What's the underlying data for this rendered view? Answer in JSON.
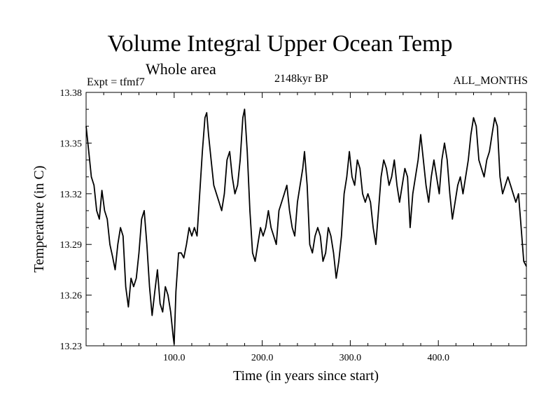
{
  "chart_data": {
    "type": "line",
    "title": "Volume Integral Upper Ocean Temp",
    "subtitle": "Whole area",
    "experiment_label": "Expt = tfmf7",
    "period_label": "2148kyr BP",
    "months_label": "ALL_MONTHS",
    "xlabel": "Time (in years since start)",
    "ylabel": "Temperature (in C)",
    "xlim": [
      0,
      500
    ],
    "ylim": [
      13.23,
      13.38
    ],
    "xticks": [
      100,
      200,
      300,
      400
    ],
    "xtick_labels": [
      "100.0",
      "200.0",
      "300.0",
      "400.0"
    ],
    "yticks": [
      13.23,
      13.26,
      13.29,
      13.32,
      13.35,
      13.38
    ],
    "ytick_labels": [
      "13.23",
      "13.26",
      "13.29",
      "13.32",
      "13.35",
      "13.38"
    ],
    "grid": false,
    "series": [
      {
        "name": "Temperature",
        "color": "#000000",
        "x": [
          0,
          3,
          6,
          9,
          12,
          15,
          18,
          21,
          24,
          27,
          30,
          33,
          36,
          39,
          42,
          45,
          48,
          51,
          54,
          57,
          60,
          63,
          66,
          69,
          72,
          75,
          78,
          81,
          84,
          87,
          90,
          93,
          96,
          99,
          100,
          102,
          105,
          108,
          111,
          114,
          117,
          120,
          123,
          126,
          129,
          132,
          135,
          137,
          139,
          142,
          145,
          148,
          151,
          154,
          157,
          160,
          163,
          166,
          169,
          172,
          175,
          178,
          180,
          183,
          186,
          189,
          192,
          195,
          198,
          201,
          204,
          207,
          210,
          213,
          216,
          219,
          222,
          225,
          228,
          231,
          234,
          237,
          240,
          243,
          246,
          248,
          251,
          254,
          257,
          260,
          263,
          266,
          269,
          272,
          275,
          278,
          281,
          284,
          287,
          290,
          293,
          296,
          299,
          302,
          305,
          308,
          311,
          314,
          317,
          320,
          323,
          326,
          329,
          332,
          335,
          338,
          341,
          344,
          347,
          350,
          353,
          356,
          359,
          362,
          365,
          368,
          371,
          374,
          377,
          380,
          383,
          386,
          389,
          392,
          395,
          398,
          401,
          404,
          407,
          410,
          413,
          416,
          419,
          422,
          425,
          428,
          431,
          434,
          437,
          440,
          443,
          446,
          449,
          452,
          455,
          458,
          461,
          464,
          467,
          470,
          473,
          476,
          479,
          482,
          485,
          488,
          491,
          494,
          497,
          500
        ],
        "values": [
          13.36,
          13.345,
          13.33,
          13.325,
          13.31,
          13.305,
          13.322,
          13.31,
          13.305,
          13.29,
          13.283,
          13.275,
          13.29,
          13.3,
          13.295,
          13.265,
          13.253,
          13.27,
          13.265,
          13.27,
          13.285,
          13.305,
          13.31,
          13.29,
          13.265,
          13.248,
          13.262,
          13.275,
          13.255,
          13.25,
          13.265,
          13.26,
          13.25,
          13.235,
          13.231,
          13.262,
          13.285,
          13.285,
          13.282,
          13.29,
          13.3,
          13.295,
          13.3,
          13.295,
          13.32,
          13.345,
          13.365,
          13.368,
          13.355,
          13.34,
          13.325,
          13.32,
          13.315,
          13.31,
          13.32,
          13.34,
          13.345,
          13.33,
          13.32,
          13.325,
          13.34,
          13.365,
          13.37,
          13.345,
          13.31,
          13.285,
          13.28,
          13.29,
          13.3,
          13.295,
          13.3,
          13.31,
          13.3,
          13.295,
          13.29,
          13.31,
          13.315,
          13.32,
          13.325,
          13.31,
          13.3,
          13.295,
          13.315,
          13.325,
          13.335,
          13.345,
          13.325,
          13.29,
          13.285,
          13.295,
          13.3,
          13.295,
          13.28,
          13.285,
          13.3,
          13.295,
          13.285,
          13.27,
          13.28,
          13.295,
          13.32,
          13.33,
          13.345,
          13.33,
          13.325,
          13.34,
          13.335,
          13.32,
          13.315,
          13.32,
          13.315,
          13.3,
          13.29,
          13.31,
          13.33,
          13.34,
          13.335,
          13.325,
          13.33,
          13.34,
          13.325,
          13.315,
          13.325,
          13.335,
          13.33,
          13.3,
          13.32,
          13.33,
          13.34,
          13.355,
          13.34,
          13.325,
          13.315,
          13.33,
          13.34,
          13.33,
          13.32,
          13.34,
          13.35,
          13.34,
          13.32,
          13.305,
          13.315,
          13.325,
          13.33,
          13.32,
          13.33,
          13.34,
          13.355,
          13.365,
          13.36,
          13.34,
          13.335,
          13.33,
          13.34,
          13.345,
          13.355,
          13.365,
          13.36,
          13.33,
          13.32,
          13.325,
          13.33,
          13.325,
          13.32,
          13.315,
          13.32,
          13.3,
          13.28,
          13.277
        ]
      }
    ]
  }
}
